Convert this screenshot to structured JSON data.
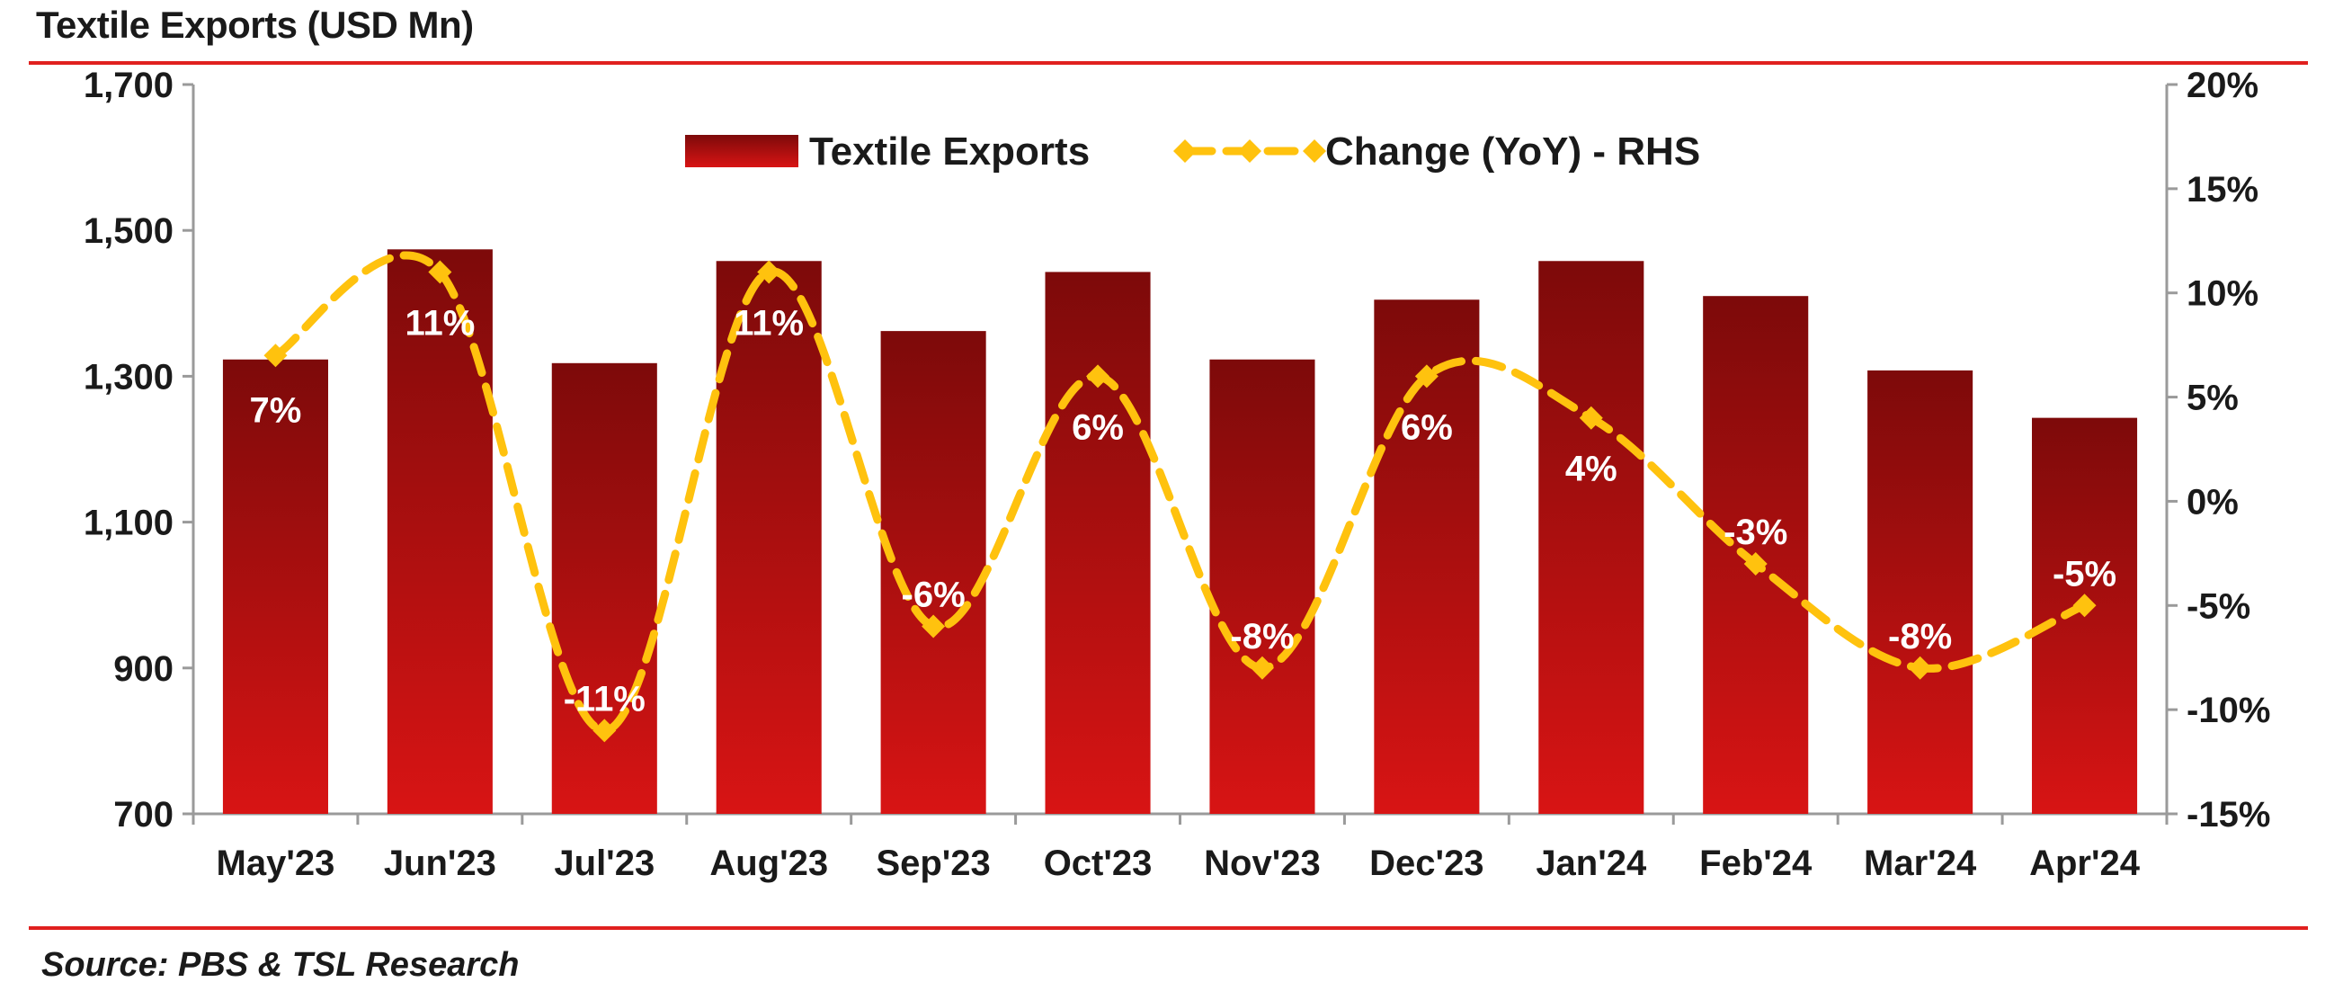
{
  "header": {
    "title": "Textile Exports (USD Mn)"
  },
  "footer": {
    "source": "Source: PBS & TSL Research"
  },
  "chart_data": {
    "type": "bar",
    "categories": [
      "May'23",
      "Jun'23",
      "Jul'23",
      "Aug'23",
      "Sep'23",
      "Oct'23",
      "Nov'23",
      "Dec'23",
      "Jan'24",
      "Feb'24",
      "Mar'24",
      "Apr'24"
    ],
    "series": [
      {
        "name": "Textile Exports",
        "type": "bar",
        "axis": "left",
        "values": [
          1323,
          1474,
          1318,
          1458,
          1362,
          1443,
          1323,
          1405,
          1458,
          1410,
          1308,
          1243
        ]
      },
      {
        "name": "Change (YoY) - RHS",
        "type": "line",
        "axis": "right",
        "values": [
          7,
          11,
          -11,
          11,
          -6,
          6,
          -8,
          6,
          4,
          -3,
          -8,
          -5
        ],
        "labels": [
          "7%",
          "11%",
          "-11%",
          "11%",
          "-6%",
          "6%",
          "-8%",
          "6%",
          "4%",
          "-3%",
          "-8%",
          "-5%"
        ]
      }
    ],
    "y_left": {
      "min": 700,
      "max": 1700,
      "ticks": [
        700,
        900,
        1100,
        1300,
        1500,
        1700
      ],
      "tick_labels": [
        "700",
        "900",
        "1,100",
        "1,300",
        "1,500",
        "1,700"
      ]
    },
    "y_right": {
      "min": -15,
      "max": 20,
      "ticks": [
        -15,
        -10,
        -5,
        0,
        5,
        10,
        15,
        20
      ],
      "tick_labels": [
        "-15%",
        "-10%",
        "-5%",
        "0%",
        "5%",
        "10%",
        "15%",
        "20%"
      ]
    },
    "legend": {
      "position": "top-center"
    },
    "grid": false,
    "colors": {
      "bar_top": "#7d0a0a",
      "bar_bottom": "#d81414",
      "line": "#ffc20e"
    }
  }
}
